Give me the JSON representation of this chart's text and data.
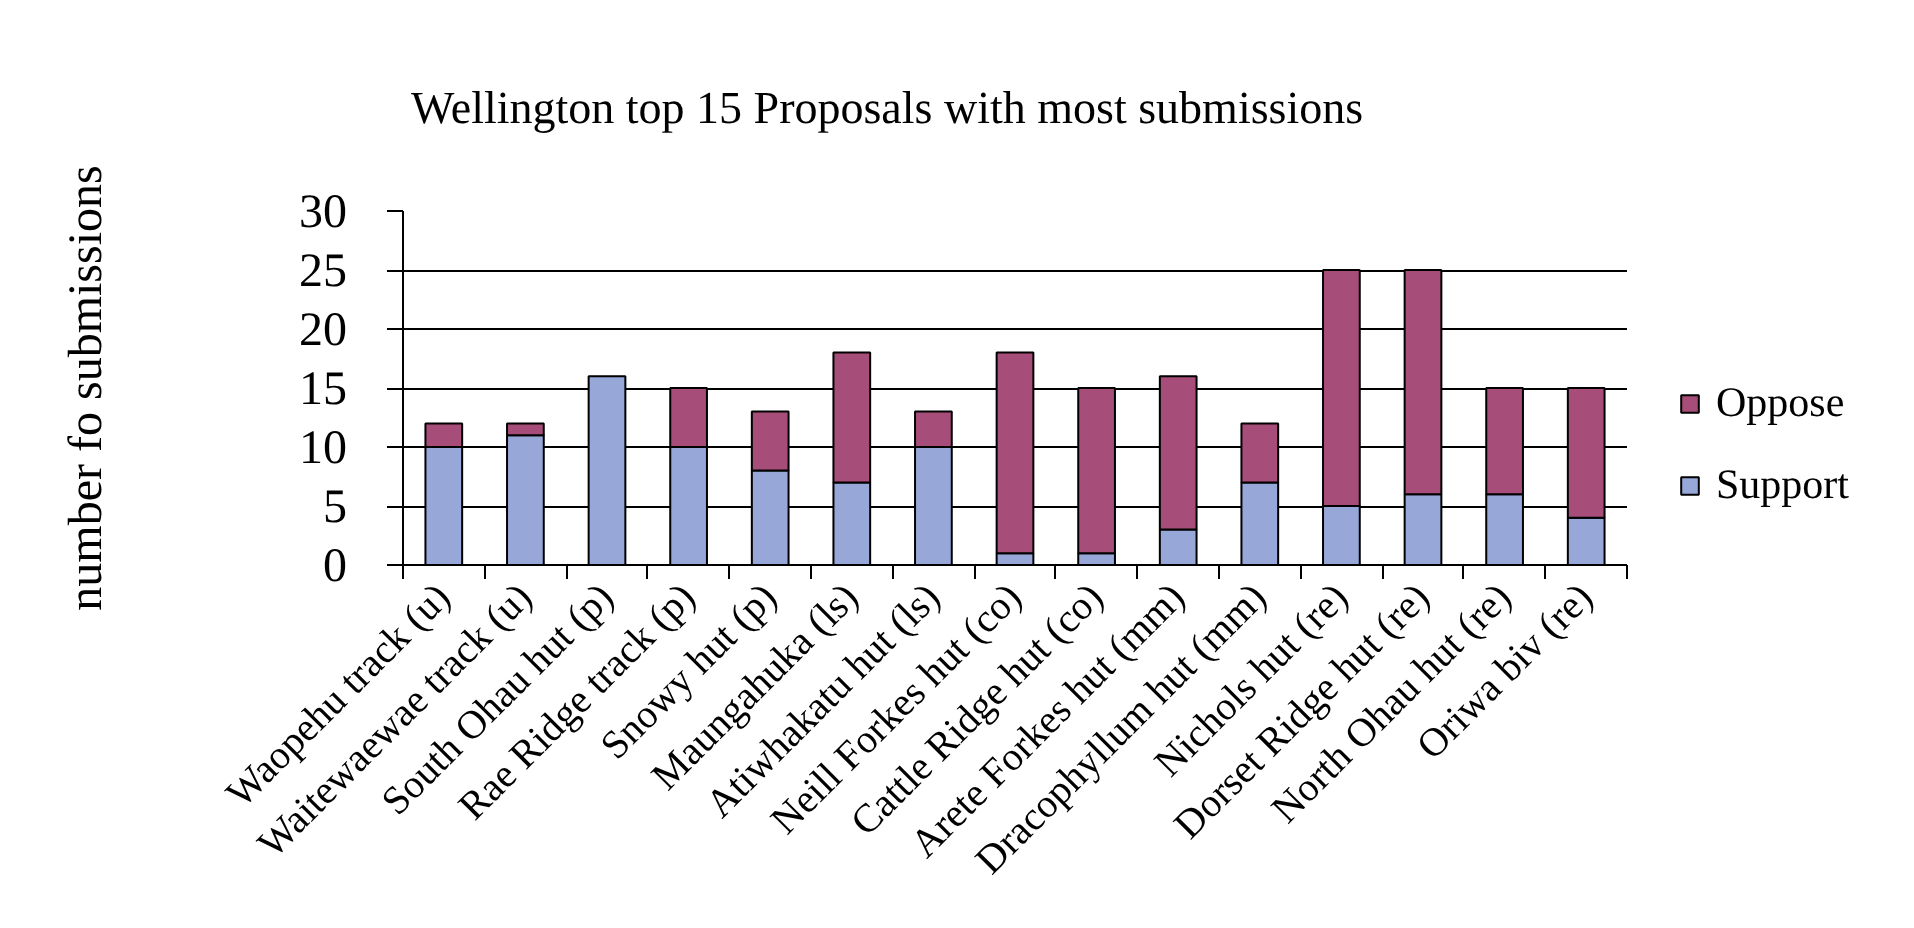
{
  "chart_data": {
    "type": "bar",
    "title": "Wellington top 15 Proposals with most submissions",
    "ylabel": "number fo submissions",
    "categories": [
      "Waopehu track (u)",
      "Waitewaewae track (u)",
      "South Ohau hut (p)",
      "Rae Ridge track (p)",
      "Snowy hut (p)",
      "Maungahuka (ls)",
      "Atiwhakatu hut (ls)",
      "Neill Forkes hut (co)",
      "Cattle Ridge hut (co)",
      "Arete Forkes hut (mm)",
      "Dracophyllum hut (mm)",
      "Nichols hut (re)",
      "Dorset Ridge hut (re)",
      "North Ohau hut (re)",
      "Oriwa biv (re)"
    ],
    "series": [
      {
        "name": "Support",
        "color": "#96a7d8",
        "values": [
          10,
          11,
          16,
          10,
          8,
          7,
          10,
          1,
          1,
          3,
          7,
          5,
          6,
          6,
          4
        ]
      },
      {
        "name": "Oppose",
        "color": "#a64d79",
        "values": [
          2,
          1,
          0,
          5,
          5,
          11,
          3,
          17,
          14,
          13,
          5,
          20,
          19,
          9,
          11
        ]
      }
    ],
    "stacked": true,
    "ylim": [
      0,
      30
    ],
    "yticks": [
      0,
      5,
      10,
      15,
      20,
      25,
      30
    ],
    "grid": "y",
    "legend": "right"
  }
}
